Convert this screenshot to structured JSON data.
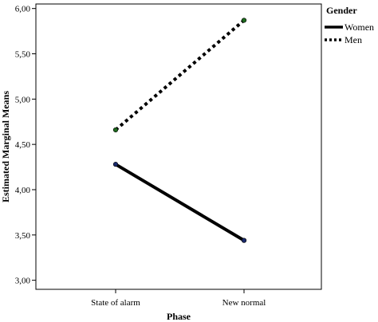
{
  "chart_data": {
    "type": "line",
    "title": "",
    "xlabel": "Phase",
    "ylabel": "Estimated Marginal Means",
    "categories": [
      "State of alarm",
      "New normal"
    ],
    "ylim": [
      2.9,
      6.05
    ],
    "yticks": [
      3.0,
      3.5,
      4.0,
      4.5,
      5.0,
      5.5,
      6.0
    ],
    "ytick_labels": [
      "3,00",
      "3,50",
      "4,00",
      "4,50",
      "5,00",
      "5,50",
      "6,00"
    ],
    "grid": false,
    "legend": {
      "title": "Gender",
      "placement": "right-top"
    },
    "series": [
      {
        "name": "Women",
        "values": [
          4.28,
          3.44
        ],
        "line_style": "solid",
        "color": "#000000",
        "marker_color": "#1a2a6c"
      },
      {
        "name": "Men",
        "values": [
          4.66,
          5.87
        ],
        "line_style": "dotted",
        "color": "#000000",
        "marker_color": "#1f6b1f"
      }
    ]
  }
}
